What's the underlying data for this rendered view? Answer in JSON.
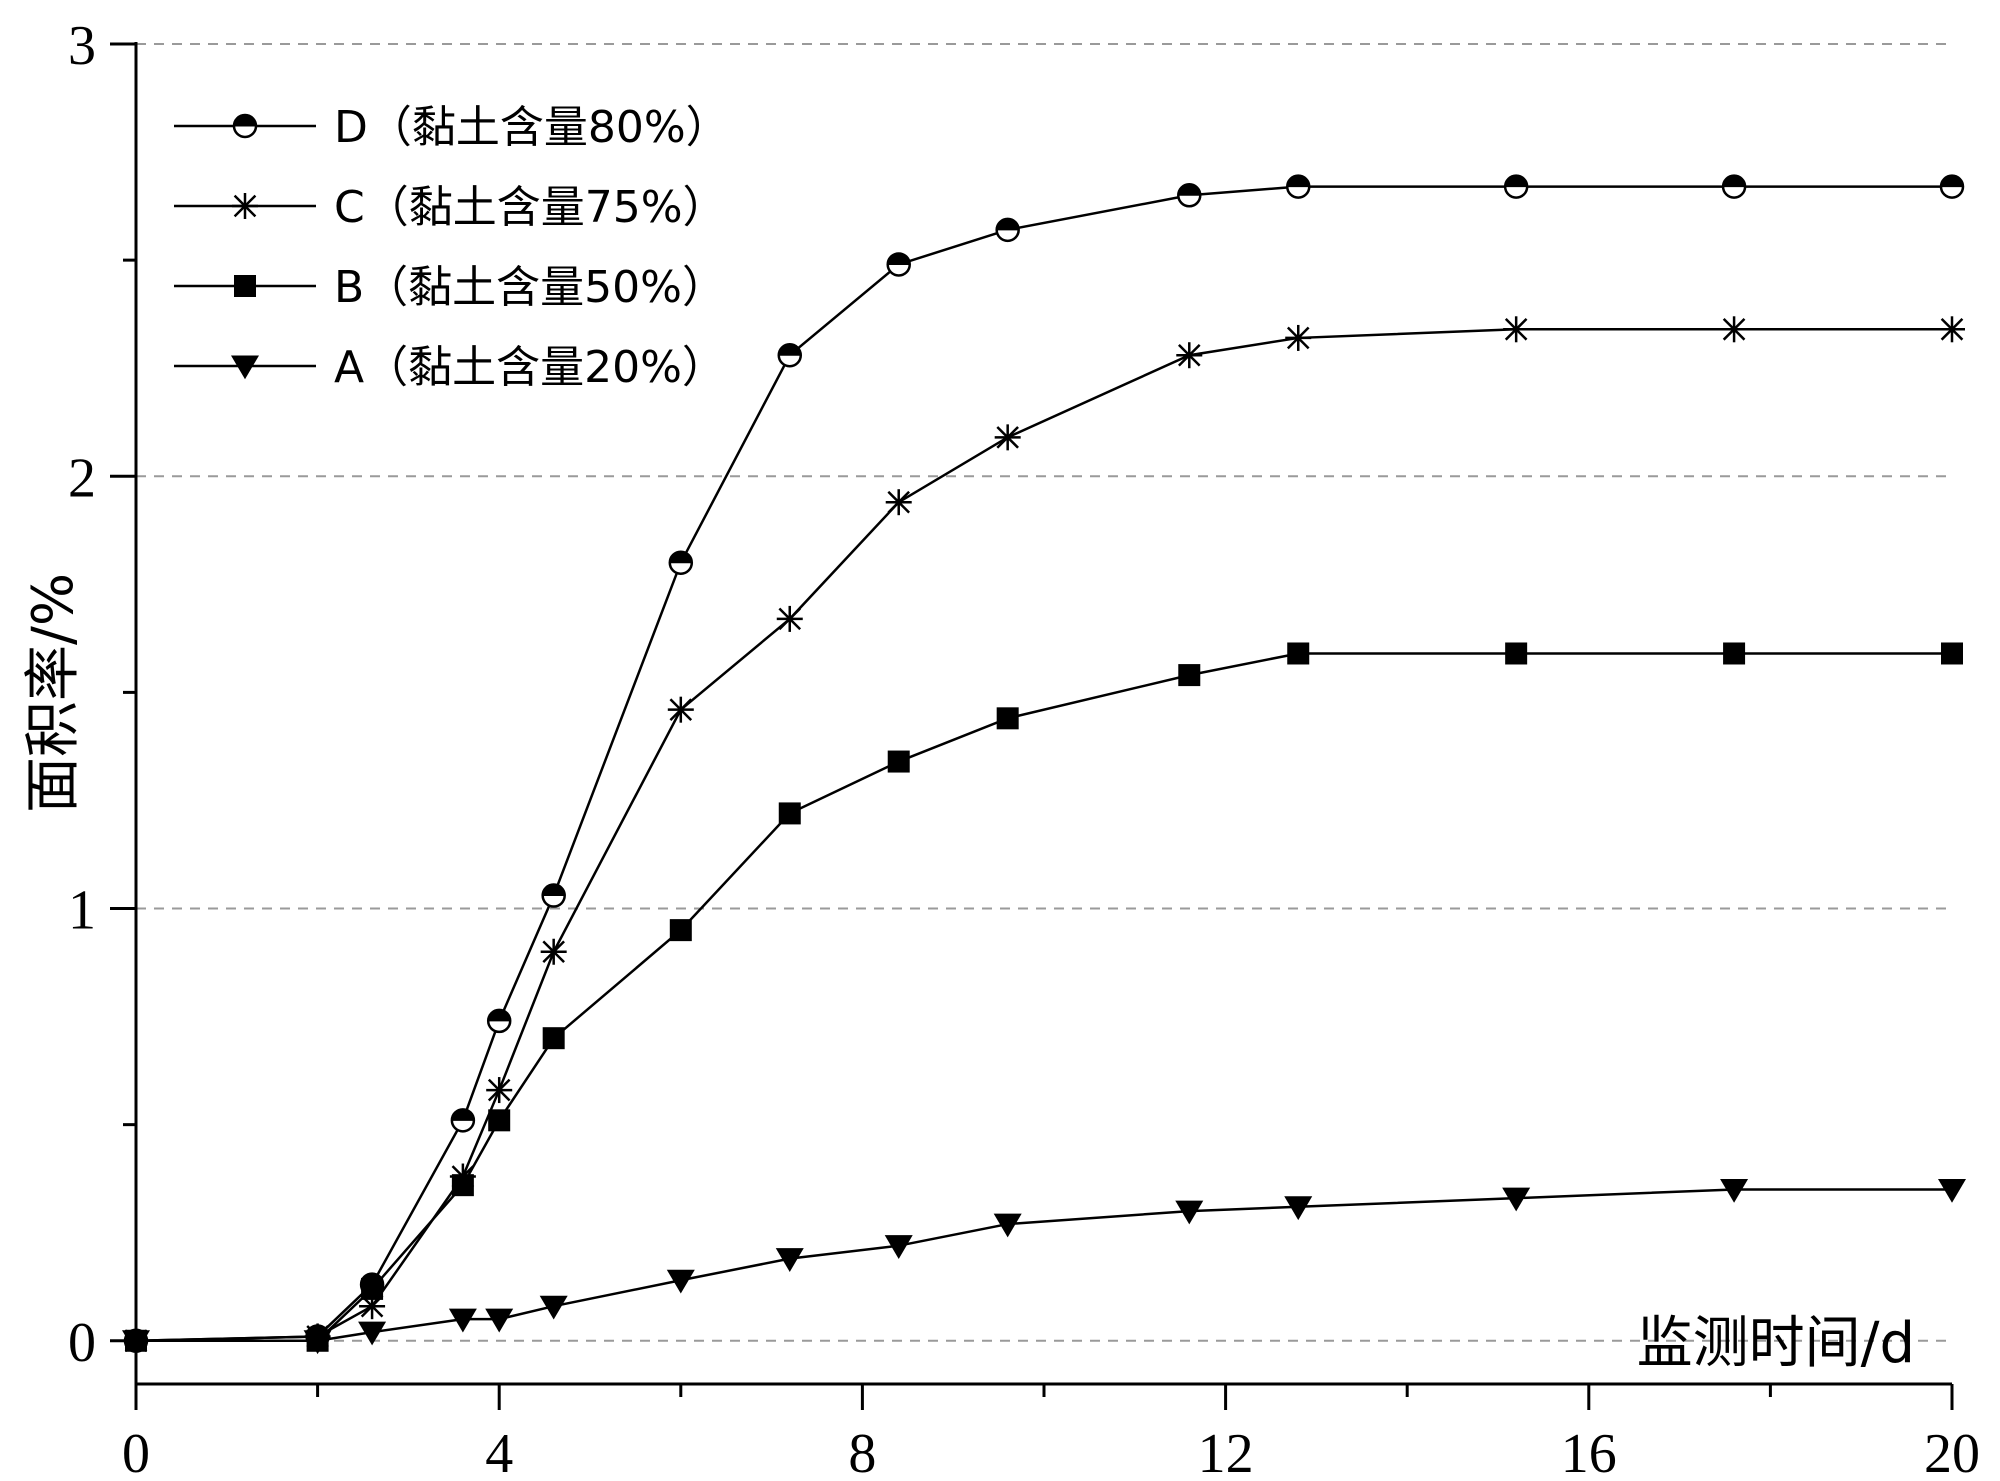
{
  "chart_data": {
    "type": "line",
    "xlabel": "监测时间/d",
    "ylabel": "面积率/%",
    "xlim": [
      0,
      20
    ],
    "ylim": [
      -0.1,
      3
    ],
    "xticks": [
      0,
      4,
      8,
      12,
      16,
      20
    ],
    "yticks": [
      0,
      1,
      2,
      3
    ],
    "grid": "horizontal dashed",
    "legend_position": "top-left",
    "x": [
      0,
      2,
      2.6,
      3.6,
      4,
      4.6,
      6,
      7.2,
      8.4,
      9.6,
      11.6,
      12.8,
      15.2,
      17.6,
      20
    ],
    "series": [
      {
        "name": "D（黏土含量80%）",
        "marker": "half-filled-circle",
        "values": [
          0,
          0.01,
          0.13,
          0.51,
          0.74,
          1.03,
          1.8,
          2.28,
          2.49,
          2.57,
          2.65,
          2.67,
          2.67,
          2.67,
          2.67
        ]
      },
      {
        "name": "C（黏土含量75%）",
        "marker": "asterisk",
        "values": [
          0,
          0.01,
          0.08,
          0.38,
          0.58,
          0.9,
          1.46,
          1.67,
          1.94,
          2.09,
          2.28,
          2.32,
          2.34,
          2.34,
          2.34
        ]
      },
      {
        "name": "B（黏土含量50%）",
        "marker": "filled-square",
        "values": [
          0,
          0,
          0.12,
          0.36,
          0.51,
          0.7,
          0.95,
          1.22,
          1.34,
          1.44,
          1.54,
          1.59,
          1.59,
          1.59,
          1.59
        ]
      },
      {
        "name": "A（黏土含量20%）",
        "marker": "filled-down-triangle",
        "values": [
          0,
          0,
          0.02,
          0.05,
          0.05,
          0.08,
          0.14,
          0.19,
          0.22,
          0.27,
          0.3,
          0.31,
          0.33,
          0.35,
          0.35
        ]
      }
    ]
  }
}
